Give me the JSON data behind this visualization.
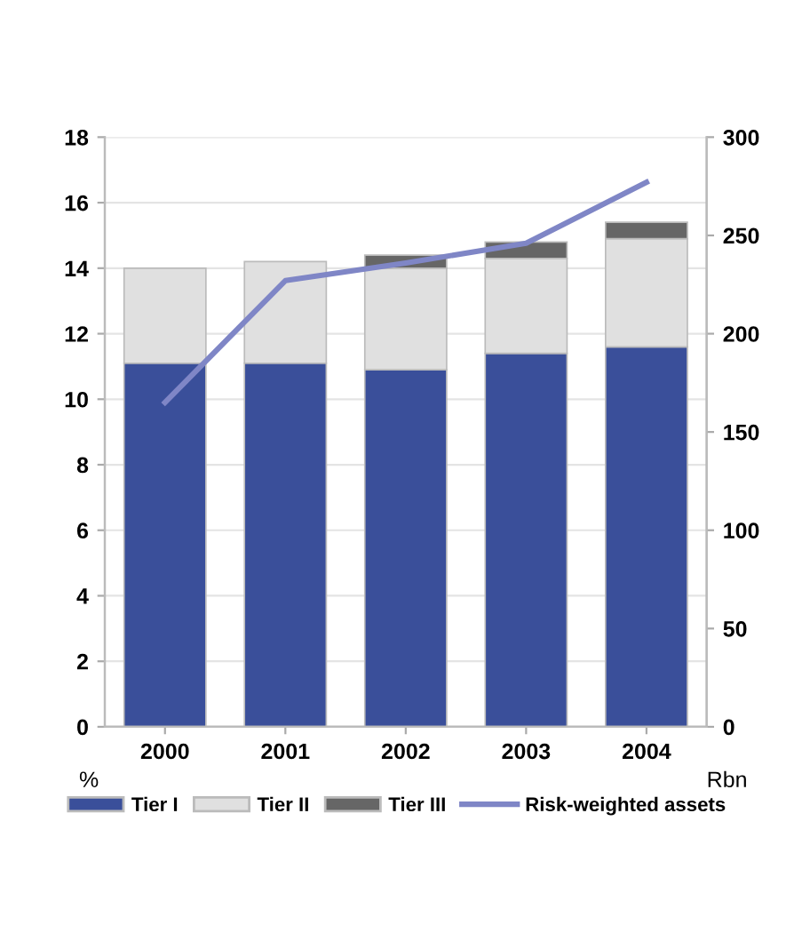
{
  "chart_data": {
    "type": "bar",
    "stacked": true,
    "categories": [
      "2000",
      "2001",
      "2002",
      "2003",
      "2004"
    ],
    "series": [
      {
        "name": "Tier I",
        "color": "#3a4f9a",
        "values": [
          11.1,
          11.1,
          10.9,
          11.4,
          11.6
        ]
      },
      {
        "name": "Tier II",
        "color": "#e0e0e0",
        "values": [
          2.9,
          3.1,
          3.1,
          2.9,
          3.3
        ]
      },
      {
        "name": "Tier III",
        "color": "#666666",
        "values": [
          null,
          null,
          0.4,
          0.5,
          0.5
        ]
      },
      {
        "name": "Risk-weighted assets",
        "type": "line",
        "axis": "y2",
        "color": "#7f86c6",
        "values": [
          165,
          227,
          236,
          246,
          277
        ]
      }
    ],
    "ylabel": "%",
    "y2label": "Rbn",
    "ylim": [
      0,
      18
    ],
    "yticks": [
      0,
      2,
      4,
      6,
      8,
      10,
      12,
      14,
      16,
      18
    ],
    "y2lim": [
      0,
      300
    ],
    "y2ticks": [
      0,
      50,
      100,
      150,
      200,
      250,
      300
    ],
    "grid": "y",
    "legend": "bottom",
    "marker": "none",
    "line_style": "solid"
  }
}
